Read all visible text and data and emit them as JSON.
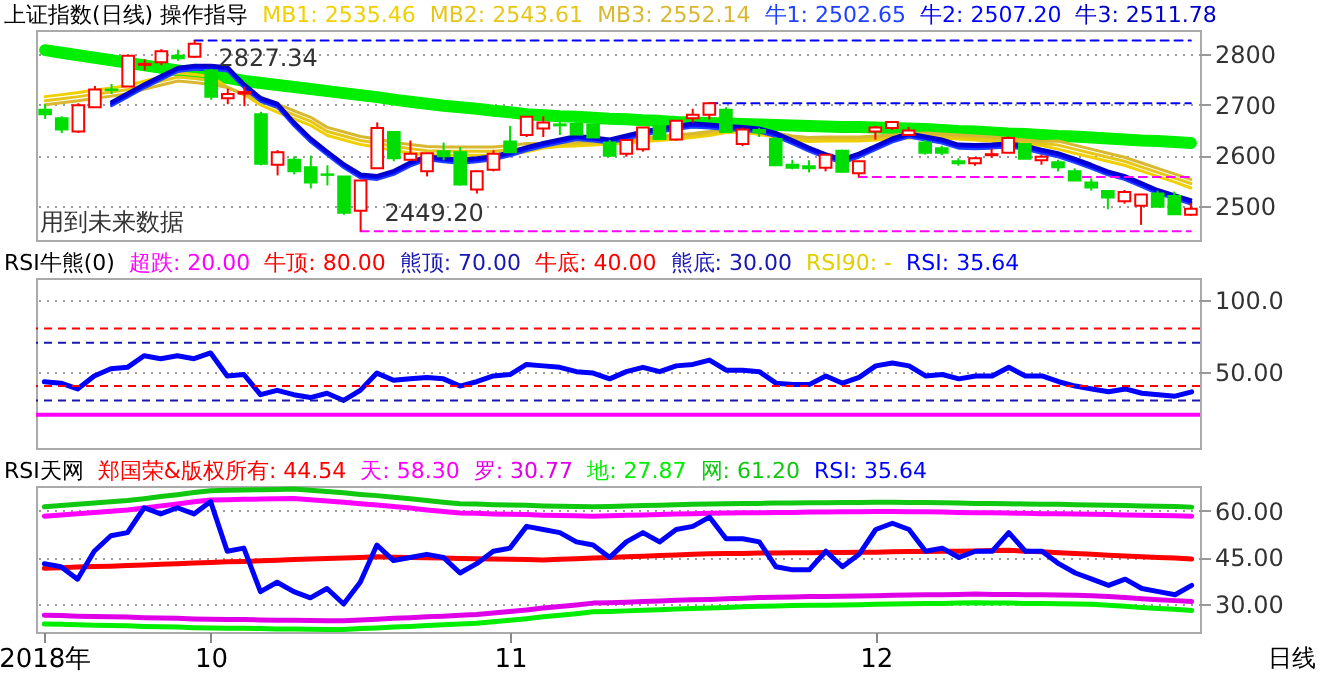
{
  "chart_data": [
    {
      "type": "candlestick",
      "title": "上证指数(日线) 操作指导",
      "categories": [
        null,
        null,
        null,
        null,
        null,
        null,
        null,
        null,
        null,
        null,
        null,
        null,
        null,
        null,
        null,
        null,
        null,
        null,
        null,
        null,
        null,
        null,
        null,
        null,
        null,
        null,
        null,
        null,
        null,
        null,
        null,
        null,
        null,
        null,
        null,
        null,
        null,
        null,
        null,
        null,
        null,
        null,
        null,
        null,
        null,
        null,
        null,
        null,
        null,
        null,
        null,
        null,
        null,
        null,
        null,
        null,
        null,
        null,
        null,
        null,
        null,
        null,
        null,
        null,
        null,
        null,
        null,
        null,
        null,
        null
      ],
      "ylim": [
        2432,
        2848
      ],
      "yticks": [
        2500,
        2600,
        2700,
        2800
      ],
      "grid": "y",
      "tick_labels": "y",
      "ohlc": [
        [
          2690,
          2701,
          2672,
          2681
        ],
        [
          2673,
          2677,
          2644,
          2651
        ],
        [
          2647,
          2703,
          2644,
          2699
        ],
        [
          2695,
          2737,
          2694,
          2730
        ],
        [
          2730,
          2741,
          2721,
          2729
        ],
        [
          2736,
          2797,
          2736,
          2797
        ],
        [
          2779,
          2790,
          2768,
          2781
        ],
        [
          2784,
          2810,
          2778,
          2806
        ],
        [
          2797,
          2809,
          2787,
          2792
        ],
        [
          2795,
          2827.34,
          2793,
          2821
        ],
        [
          2768,
          2771,
          2710,
          2716
        ],
        [
          2713,
          2732,
          2701,
          2721
        ],
        [
          2722,
          2736,
          2697,
          2725
        ],
        [
          2681,
          2686,
          2580,
          2583
        ],
        [
          2581,
          2610,
          2560,
          2606
        ],
        [
          2591,
          2598,
          2562,
          2568
        ],
        [
          2576,
          2599,
          2534,
          2546
        ],
        [
          2562,
          2580,
          2540,
          2561
        ],
        [
          2558,
          2558,
          2482,
          2486
        ],
        [
          2490,
          2550,
          2449.2,
          2550
        ],
        [
          2574,
          2665,
          2574,
          2654
        ],
        [
          2646,
          2646,
          2588,
          2594
        ],
        [
          2591,
          2629,
          2589,
          2603
        ],
        [
          2568,
          2605,
          2558,
          2604
        ],
        [
          2608,
          2625,
          2590,
          2598
        ],
        [
          2606,
          2616,
          2540,
          2542
        ],
        [
          2532,
          2570,
          2524,
          2568
        ],
        [
          2571,
          2610,
          2568,
          2603
        ],
        [
          2627,
          2658,
          2606,
          2606
        ],
        [
          2640,
          2677,
          2636,
          2676
        ],
        [
          2653,
          2677,
          2636,
          2665
        ],
        [
          2661,
          2668,
          2640,
          2659
        ],
        [
          2662,
          2665,
          2640,
          2641
        ],
        [
          2661,
          2662,
          2634,
          2635
        ],
        [
          2625,
          2630,
          2596,
          2599
        ],
        [
          2603,
          2630,
          2597,
          2630
        ],
        [
          2612,
          2655,
          2607,
          2655
        ],
        [
          2658,
          2660,
          2632,
          2632
        ],
        [
          2631,
          2668,
          2629,
          2668
        ],
        [
          2673,
          2692,
          2665,
          2680
        ],
        [
          2680,
          2703,
          2671,
          2703
        ],
        [
          2690,
          2695,
          2646,
          2646
        ],
        [
          2622,
          2655,
          2618,
          2651
        ],
        [
          2650,
          2654,
          2636,
          2645
        ],
        [
          2632,
          2636,
          2579,
          2580
        ],
        [
          2581,
          2591,
          2572,
          2575
        ],
        [
          2578,
          2590,
          2566,
          2574
        ],
        [
          2575,
          2602,
          2568,
          2601
        ],
        [
          2609,
          2611,
          2566,
          2567
        ],
        [
          2564,
          2589,
          2557,
          2588
        ],
        [
          2647,
          2658,
          2631,
          2655
        ],
        [
          2654,
          2667,
          2650,
          2666
        ],
        [
          2640,
          2656,
          2638,
          2649
        ],
        [
          2625,
          2630,
          2601,
          2605
        ],
        [
          2614,
          2619,
          2600,
          2605
        ],
        [
          2588,
          2594,
          2579,
          2584
        ],
        [
          2584,
          2596,
          2579,
          2594
        ],
        [
          2600,
          2613,
          2595,
          2602
        ],
        [
          2605,
          2637,
          2605,
          2634
        ],
        [
          2622,
          2622,
          2593,
          2593
        ],
        [
          2590,
          2601,
          2581,
          2597
        ],
        [
          2586,
          2591,
          2568,
          2576
        ],
        [
          2568,
          2574,
          2549,
          2550
        ],
        [
          2546,
          2554,
          2530,
          2536
        ],
        [
          2529,
          2531,
          2493,
          2516
        ],
        [
          2509,
          2531,
          2504,
          2527
        ],
        [
          2500,
          2522,
          2462,
          2522
        ],
        [
          2524,
          2530,
          2498,
          2498
        ],
        [
          2519,
          2528,
          2482,
          2483
        ],
        [
          2482,
          2505,
          2480,
          2494
        ]
      ],
      "colors": [
        "#00dd00",
        "#00dd00",
        "#ff0000",
        "#ff0000",
        "#00dd00",
        "#ff0000",
        "#ff0000",
        "#ff0000",
        "#00dd00",
        "#ff0000",
        "#00dd00",
        "#ff0000",
        "#ff0000",
        "#00dd00",
        "#ff0000",
        "#00dd00",
        "#00dd00",
        "#00dd00",
        "#00dd00",
        "#ff0000",
        "#ff0000",
        "#00dd00",
        "#ff0000",
        "#ff0000",
        "#00dd00",
        "#00dd00",
        "#ff0000",
        "#ff0000",
        "#00dd00",
        "#ff0000",
        "#ff0000",
        "#00dd00",
        "#00dd00",
        "#00dd00",
        "#00dd00",
        "#ff0000",
        "#ff0000",
        "#00dd00",
        "#ff0000",
        "#ff0000",
        "#ff0000",
        "#00dd00",
        "#ff0000",
        "#00dd00",
        "#00dd00",
        "#00dd00",
        "#00dd00",
        "#ff0000",
        "#00dd00",
        "#ff0000",
        "#ff0000",
        "#ff0000",
        "#ff0000",
        "#00dd00",
        "#00dd00",
        "#00dd00",
        "#ff0000",
        "#ff0000",
        "#ff0000",
        "#00dd00",
        "#ff0000",
        "#00dd00",
        "#00dd00",
        "#00dd00",
        "#00dd00",
        "#ff0000",
        "#ff0000",
        "#00dd00",
        "#00dd00",
        "#ff0000"
      ],
      "series": [
        {
          "type": "line",
          "color": "#00ee00",
          "values": [
            2808,
            2803,
            2798,
            2793,
            2788,
            2783,
            2778,
            2773,
            2768,
            2763,
            2758,
            2753,
            2747,
            2743,
            2739,
            2735,
            2731,
            2727,
            2723,
            2719,
            2715,
            2710,
            2706,
            2702,
            2698,
            2695,
            2692,
            2688,
            2685,
            2681,
            2679,
            2677,
            2676,
            2674,
            2672,
            2671,
            2669,
            2668,
            2666,
            2665,
            2664,
            2663,
            2662,
            2661,
            2660,
            2659,
            2658,
            2657,
            2656,
            2656,
            2655,
            2654,
            2653,
            2652,
            2650,
            2648,
            2647,
            2645,
            2643,
            2642,
            2640,
            2638,
            2637,
            2635,
            2633,
            2631,
            2629,
            2628,
            2626,
            2624
          ]
        },
        {
          "type": "line",
          "name": "MB1: 2535.46",
          "color": "#f0d000",
          "values": [
            2716,
            2720,
            2724,
            2729,
            2733,
            2738,
            2747,
            2755,
            2763,
            2760,
            2756,
            2734,
            2720,
            2699,
            2685,
            2672,
            2659,
            2639,
            2630,
            2621,
            2616,
            2609,
            2605,
            2601,
            2600,
            2600,
            2600,
            2600,
            2603,
            2607,
            2614,
            2617,
            2618,
            2620,
            2622,
            2624,
            2627,
            2629,
            2632,
            2635,
            2639,
            2645,
            2646,
            2641,
            2636,
            2630,
            2627,
            2628,
            2628,
            2628,
            2630,
            2632,
            2634,
            2636,
            2634,
            2632,
            2630,
            2628,
            2625,
            2622,
            2619,
            2612,
            2604,
            2596,
            2588,
            2580,
            2569,
            2558,
            2547,
            2535
          ]
        },
        {
          "type": "line",
          "name": "MB2: 2543.61",
          "color": "#e6c619",
          "values": [
            2708,
            2712,
            2716,
            2721,
            2725,
            2730,
            2739,
            2747,
            2755,
            2752,
            2748,
            2734,
            2720,
            2707,
            2693,
            2680,
            2667,
            2647,
            2638,
            2629,
            2624,
            2617,
            2613,
            2609,
            2608,
            2608,
            2608,
            2608,
            2611,
            2615,
            2618,
            2621,
            2622,
            2624,
            2626,
            2628,
            2631,
            2633,
            2636,
            2639,
            2643,
            2649,
            2650,
            2645,
            2640,
            2634,
            2631,
            2632,
            2632,
            2632,
            2634,
            2636,
            2638,
            2640,
            2638,
            2636,
            2634,
            2632,
            2629,
            2626,
            2623,
            2620,
            2612,
            2604,
            2596,
            2588,
            2577,
            2566,
            2555,
            2544
          ]
        },
        {
          "type": "line",
          "name": "MB3: 2552.14",
          "color": "#d8b830",
          "values": [
            2700,
            2704,
            2708,
            2713,
            2717,
            2722,
            2731,
            2739,
            2747,
            2744,
            2740,
            2734,
            2720,
            2715,
            2701,
            2688,
            2675,
            2655,
            2646,
            2637,
            2632,
            2625,
            2621,
            2617,
            2616,
            2616,
            2616,
            2616,
            2619,
            2623,
            2622,
            2625,
            2626,
            2628,
            2630,
            2632,
            2635,
            2637,
            2640,
            2643,
            2647,
            2653,
            2654,
            2649,
            2644,
            2638,
            2635,
            2636,
            2636,
            2636,
            2638,
            2640,
            2642,
            2644,
            2642,
            2640,
            2638,
            2636,
            2633,
            2630,
            2627,
            2628,
            2620,
            2612,
            2604,
            2596,
            2585,
            2574,
            2563,
            2552
          ]
        },
        {
          "type": "line",
          "name": "牛1: 2502.65",
          "color": "#2040ff",
          "values": [
            null,
            null,
            null,
            null,
            2698,
            2716,
            2734,
            2750,
            2766,
            2770,
            2770,
            2767,
            2733,
            2706,
            2695,
            2658,
            2626,
            2600,
            2575,
            2555,
            2552,
            2562,
            2579,
            2591,
            2587,
            2584,
            2587,
            2591,
            2599,
            2609,
            2617,
            2624,
            2631,
            2628,
            2624,
            2632,
            2640,
            2646,
            2651,
            2656,
            2654,
            2651,
            2649,
            2646,
            2637,
            2623,
            2608,
            2595,
            2585,
            2596,
            2611,
            2626,
            2636,
            2630,
            2624,
            2614,
            2613,
            2614,
            2616,
            2612,
            2604,
            2597,
            2586,
            2574,
            2561,
            2552,
            2538,
            2524,
            2514,
            2503
          ]
        },
        {
          "type": "line",
          "name": "牛2: 2507.20",
          "color": "#0000ff",
          "values": [
            null,
            null,
            null,
            null,
            2702,
            2720,
            2738,
            2754,
            2770,
            2774,
            2774,
            2771,
            2737,
            2710,
            2699,
            2662,
            2630,
            2604,
            2579,
            2559,
            2556,
            2566,
            2583,
            2595,
            2591,
            2588,
            2591,
            2595,
            2603,
            2613,
            2621,
            2628,
            2635,
            2632,
            2628,
            2636,
            2644,
            2650,
            2655,
            2660,
            2658,
            2655,
            2653,
            2650,
            2641,
            2627,
            2612,
            2599,
            2589,
            2600,
            2615,
            2630,
            2640,
            2634,
            2628,
            2618,
            2617,
            2618,
            2620,
            2616,
            2608,
            2601,
            2590,
            2578,
            2565,
            2556,
            2542,
            2528,
            2518,
            2507
          ]
        },
        {
          "type": "line",
          "name": "牛3: 2511.78",
          "color": "#0000c8",
          "values": [
            null,
            null,
            null,
            null,
            2706,
            2724,
            2742,
            2758,
            2774,
            2778,
            2778,
            2775,
            2741,
            2714,
            2703,
            2666,
            2634,
            2608,
            2583,
            2563,
            2560,
            2570,
            2587,
            2599,
            2595,
            2592,
            2595,
            2599,
            2607,
            2617,
            2625,
            2632,
            2639,
            2636,
            2632,
            2640,
            2648,
            2654,
            2659,
            2664,
            2662,
            2659,
            2657,
            2654,
            2645,
            2631,
            2616,
            2603,
            2593,
            2604,
            2619,
            2634,
            2644,
            2638,
            2632,
            2622,
            2621,
            2622,
            2624,
            2620,
            2612,
            2605,
            2594,
            2582,
            2569,
            2560,
            2546,
            2532,
            2522,
            2512
          ]
        },
        {
          "type": "line",
          "color": "#0000ff",
          "line_style": "dashed",
          "values": [
            null,
            null,
            null,
            null,
            null,
            null,
            null,
            null,
            null,
            2827.34,
            2827.34,
            2827.34,
            2827.34,
            2827.34,
            2827.34,
            2827.34,
            2827.34,
            2827.34,
            2827.34,
            2827.34,
            2827.34,
            2827.34,
            2827.34,
            2827.34,
            2827.34,
            2827.34,
            2827.34,
            2827.34,
            2827.34,
            2827.34,
            2827.34,
            2827.34,
            2827.34,
            2827.34,
            2827.34,
            2827.34,
            2827.34,
            2827.34,
            2827.34,
            2827.34,
            2827.34,
            2827.34,
            2827.34,
            2827.34,
            2827.34,
            2827.34,
            2827.34,
            2827.34,
            2827.34,
            2827.34,
            2827.34,
            2827.34,
            2827.34,
            2827.34,
            2827.34,
            2827.34,
            2827.34,
            2827.34,
            2827.34,
            2827.34,
            2827.34,
            2827.34,
            2827.34,
            2827.34,
            2827.34,
            2827.34,
            2827.34,
            2827.34,
            2827.34,
            2827.34
          ]
        },
        {
          "type": "line",
          "color": "#ff00ff",
          "line_style": "dashed",
          "values": [
            null,
            null,
            null,
            null,
            null,
            null,
            null,
            null,
            null,
            null,
            null,
            null,
            null,
            null,
            null,
            null,
            null,
            null,
            null,
            2449.2,
            2449.2,
            2449.2,
            2449.2,
            2449.2,
            2449.2,
            2449.2,
            2449.2,
            2449.2,
            2449.2,
            2449.2,
            2449.2,
            2449.2,
            2449.2,
            2449.2,
            2449.2,
            2449.2,
            2449.2,
            2449.2,
            2449.2,
            2449.2,
            2449.2,
            2449.2,
            2449.2,
            2449.2,
            2449.2,
            2449.2,
            2449.2,
            2449.2,
            2449.2,
            2449.2,
            2449.2,
            2449.2,
            2449.2,
            2449.2,
            2449.2,
            2449.2,
            2449.2,
            2449.2,
            2449.2,
            2449.2,
            2449.2,
            2449.2,
            2449.2,
            2449.2,
            2449.2,
            2449.2,
            2449.2,
            2449.2,
            2449.2,
            2449.2
          ]
        },
        {
          "type": "line",
          "color": "#0000ff",
          "line_style": "dashed",
          "values": [
            null,
            null,
            null,
            null,
            null,
            null,
            null,
            null,
            null,
            null,
            null,
            null,
            null,
            null,
            null,
            null,
            null,
            null,
            null,
            null,
            null,
            null,
            null,
            null,
            null,
            null,
            null,
            null,
            null,
            null,
            null,
            null,
            null,
            null,
            null,
            null,
            null,
            null,
            null,
            null,
            2703,
            2703,
            2703,
            2703,
            2703,
            2703,
            2703,
            2703,
            2703,
            2703,
            2703,
            2703,
            2703,
            2703,
            2703,
            2703,
            2703,
            2703,
            2703,
            2703,
            2703,
            2703,
            2703,
            2703,
            2703,
            2703,
            2703,
            2703,
            2703,
            2703
          ]
        },
        {
          "type": "line",
          "color": "#ff00ff",
          "line_style": "dashed",
          "values": [
            null,
            null,
            null,
            null,
            null,
            null,
            null,
            null,
            null,
            null,
            null,
            null,
            null,
            null,
            null,
            null,
            null,
            null,
            null,
            null,
            null,
            null,
            null,
            null,
            null,
            null,
            null,
            null,
            null,
            null,
            null,
            null,
            null,
            null,
            null,
            null,
            null,
            null,
            null,
            null,
            null,
            null,
            null,
            null,
            null,
            null,
            null,
            null,
            null,
            2557,
            2557,
            2557,
            2557,
            2557,
            2557,
            2557,
            2557,
            2557,
            2557,
            2557,
            2557,
            2557,
            2557,
            2557,
            2557,
            2557,
            2557,
            2557,
            2557,
            2557
          ]
        }
      ],
      "annotations": [
        {
          "text": "2827.34",
          "y": 2827.34
        },
        {
          "text": "2449.20",
          "y": 2449.2
        },
        "用到未来数据"
      ]
    },
    {
      "type": "line",
      "title": "RSI牛熊(0)",
      "categories": [
        null,
        null,
        null,
        null,
        null,
        null,
        null,
        null,
        null,
        null,
        null,
        null,
        null,
        null,
        null,
        null,
        null,
        null,
        null,
        null,
        null,
        null,
        null,
        null,
        null,
        null,
        null,
        null,
        null,
        null,
        null,
        null,
        null,
        null,
        null,
        null,
        null,
        null,
        null,
        null,
        null,
        null,
        null,
        null,
        null,
        null,
        null,
        null,
        null,
        null,
        null,
        null,
        null,
        null,
        null,
        null,
        null,
        null,
        null,
        null,
        null,
        null,
        null,
        null,
        null,
        null,
        null,
        null,
        null,
        null
      ],
      "ylim": [
        -3,
        115
      ],
      "yticks": [
        {
          "value": 100,
          "label": "100.0"
        },
        {
          "value": 50,
          "label": "50.00"
        }
      ],
      "grid": "y",
      "tick_labels": "y",
      "ref_lines": [
        {
          "axis": "y",
          "value": 20,
          "label": "超跌: 20.00",
          "color": "#ff00ff",
          "line_style": "solid"
        },
        {
          "axis": "y",
          "value": 80,
          "label": "牛顶: 80.00",
          "color": "#ff0000",
          "line_style": "dashed"
        },
        {
          "axis": "y",
          "value": 70,
          "label": "熊顶: 70.00",
          "color": "#1818b0",
          "line_style": "dashed"
        },
        {
          "axis": "y",
          "value": 40,
          "label": "牛底: 40.00",
          "color": "#ff0000",
          "line_style": "dashed"
        },
        {
          "axis": "y",
          "value": 30,
          "label": "熊底: 30.00",
          "color": "#1818b0",
          "line_style": "dashed"
        }
      ],
      "annotations": [
        "RSI90: -"
      ],
      "series": [
        {
          "type": "line",
          "name": "RSI: 35.64",
          "color": "#0000ff",
          "values": [
            43,
            42,
            38,
            47,
            52,
            53,
            61,
            59,
            61,
            59,
            63,
            47,
            48,
            34,
            37,
            34,
            32,
            35,
            30,
            37,
            49,
            44,
            45,
            46,
            45,
            40,
            43,
            47,
            48,
            55,
            54,
            53,
            50,
            49,
            45,
            50,
            53,
            50,
            54,
            55,
            58,
            51,
            51,
            50,
            42,
            41,
            41,
            47,
            42,
            46,
            54,
            56,
            54,
            47,
            48,
            45,
            47,
            47,
            53,
            47,
            47,
            43,
            40,
            38,
            36,
            38,
            35,
            34,
            33,
            36
          ]
        }
      ]
    },
    {
      "type": "line",
      "title": "RSI天网",
      "categories": [
        "2018年",
        null,
        null,
        null,
        null,
        null,
        null,
        null,
        null,
        null,
        "10",
        null,
        null,
        null,
        null,
        null,
        null,
        null,
        null,
        null,
        null,
        null,
        null,
        null,
        null,
        null,
        null,
        null,
        "11",
        null,
        null,
        null,
        null,
        null,
        null,
        null,
        null,
        null,
        null,
        null,
        null,
        null,
        null,
        null,
        null,
        null,
        null,
        null,
        null,
        null,
        "12",
        null,
        null,
        null,
        null,
        null,
        null,
        null,
        null,
        null,
        null,
        null,
        null,
        null,
        null,
        null,
        null,
        null,
        null,
        null
      ],
      "ylim": [
        21,
        68
      ],
      "yticks": [
        {
          "value": 60,
          "label": "60.00"
        },
        {
          "value": 45,
          "label": "45.00"
        },
        {
          "value": 30,
          "label": "30.00"
        }
      ],
      "grid": "y",
      "annotations": [
        "日线"
      ],
      "series": [
        {
          "type": "line",
          "name": "郑国荣&版权所有: 44.54",
          "color": "#ff0000",
          "values": [
            41.5,
            41.7,
            41.9,
            42.1,
            42.2,
            42.4,
            42.6,
            42.8,
            43.0,
            43.2,
            43.4,
            43.6,
            43.7,
            43.9,
            44.1,
            44.3,
            44.5,
            44.7,
            44.8,
            45.0,
            45.2,
            45.1,
            45.0,
            44.9,
            44.8,
            44.7,
            44.6,
            44.5,
            44.4,
            44.3,
            44.2,
            44.4,
            44.6,
            44.8,
            45.0,
            45.2,
            45.4,
            45.6,
            45.8,
            46.0,
            46.2,
            46.3,
            46.3,
            46.4,
            46.4,
            46.5,
            46.5,
            46.6,
            46.6,
            46.7,
            46.7,
            46.8,
            46.9,
            46.9,
            47.0,
            47.0,
            47.1,
            47.2,
            47.3,
            47.0,
            46.8,
            46.5,
            46.3,
            46.0,
            45.7,
            45.5,
            45.2,
            45.0,
            44.8,
            44.5
          ]
        },
        {
          "type": "line",
          "name": "天: 58.30",
          "color": "#ff00ff",
          "values": [
            58.3,
            58.7,
            59.1,
            59.5,
            59.9,
            60.3,
            60.9,
            61.6,
            62.2,
            62.9,
            63.5,
            63.6,
            63.7,
            63.8,
            63.9,
            64.0,
            63.6,
            63.2,
            62.8,
            62.3,
            61.9,
            61.4,
            60.9,
            60.3,
            59.8,
            59.3,
            59.2,
            59.0,
            58.9,
            58.8,
            58.6,
            58.5,
            58.4,
            58.3,
            58.4,
            58.6,
            58.7,
            58.8,
            59.0,
            59.1,
            59.2,
            59.3,
            59.4,
            59.4,
            59.5,
            59.5,
            59.6,
            59.6,
            59.7,
            59.7,
            59.8,
            59.8,
            59.7,
            59.7,
            59.6,
            59.5,
            59.4,
            59.4,
            59.3,
            59.2,
            59.1,
            59.1,
            59.0,
            58.9,
            58.8,
            58.7,
            58.6,
            58.5,
            58.4,
            58.3
          ]
        },
        {
          "type": "line",
          "name": "罗: 30.77",
          "color": "#e000e8",
          "values": [
            26.4,
            26.3,
            26.1,
            26.0,
            25.9,
            25.8,
            25.6,
            25.5,
            25.4,
            25.2,
            25.1,
            25.0,
            25.0,
            24.9,
            24.8,
            24.8,
            24.7,
            24.6,
            24.6,
            24.9,
            25.1,
            25.4,
            25.6,
            25.9,
            26.1,
            26.4,
            26.6,
            27.1,
            27.6,
            28.1,
            28.7,
            29.2,
            29.7,
            30.3,
            30.4,
            30.6,
            30.8,
            31.0,
            31.2,
            31.4,
            31.5,
            31.7,
            31.9,
            32.1,
            32.2,
            32.3,
            32.4,
            32.4,
            32.5,
            32.6,
            32.7,
            32.8,
            32.9,
            33.0,
            33.0,
            33.1,
            33.2,
            33.1,
            33.1,
            33.0,
            33.0,
            32.9,
            32.8,
            32.7,
            32.4,
            32.1,
            31.7,
            31.4,
            31.1,
            30.8
          ]
        },
        {
          "type": "line",
          "name": "地: 27.87",
          "color": "#00ee00",
          "values": [
            23.6,
            23.5,
            23.3,
            23.2,
            23.1,
            23.0,
            22.8,
            22.7,
            22.6,
            22.4,
            22.3,
            22.2,
            22.2,
            22.1,
            22.0,
            22.0,
            21.9,
            21.8,
            21.8,
            22.1,
            22.3,
            22.6,
            22.8,
            23.1,
            23.3,
            23.6,
            23.8,
            24.3,
            24.8,
            25.3,
            25.9,
            26.4,
            26.9,
            27.5,
            27.6,
            27.8,
            28.0,
            28.2,
            28.4,
            28.6,
            28.7,
            28.9,
            29.1,
            29.3,
            29.4,
            29.5,
            29.6,
            29.6,
            29.7,
            29.8,
            29.9,
            30.0,
            30.1,
            30.2,
            30.2,
            30.3,
            30.4,
            30.3,
            30.3,
            30.2,
            30.2,
            30.1,
            30.0,
            29.9,
            29.6,
            29.3,
            28.9,
            28.6,
            28.3,
            27.9
          ]
        },
        {
          "type": "line",
          "name": "网: 61.20",
          "color": "#10c810",
          "values": [
            61.3,
            61.7,
            62.1,
            62.5,
            62.9,
            63.3,
            63.9,
            64.6,
            65.2,
            65.9,
            66.5,
            66.6,
            66.7,
            66.8,
            66.9,
            67.0,
            66.6,
            66.2,
            65.8,
            65.3,
            64.9,
            64.4,
            63.9,
            63.3,
            62.8,
            62.3,
            62.2,
            62.0,
            61.9,
            61.8,
            61.6,
            61.5,
            61.4,
            61.3,
            61.4,
            61.6,
            61.7,
            61.8,
            62.0,
            62.1,
            62.2,
            62.3,
            62.4,
            62.4,
            62.5,
            62.5,
            62.6,
            62.6,
            62.7,
            62.7,
            62.8,
            62.8,
            62.7,
            62.7,
            62.6,
            62.5,
            62.4,
            62.4,
            62.3,
            62.2,
            62.1,
            62.1,
            62.0,
            61.9,
            61.8,
            61.7,
            61.6,
            61.5,
            61.4,
            61.2
          ]
        },
        {
          "type": "line",
          "name": "RSI: 35.64",
          "color": "#0000ff",
          "values": [
            43,
            42,
            38,
            47,
            52,
            53,
            61,
            59,
            61,
            59,
            63,
            47,
            48,
            34,
            37,
            34,
            32,
            35,
            30,
            37,
            49,
            44,
            45,
            46,
            45,
            40,
            43,
            47,
            48,
            55,
            54,
            53,
            50,
            49,
            45,
            50,
            53,
            50,
            54,
            55,
            58,
            51,
            51,
            50,
            42,
            41,
            41,
            47,
            42,
            46,
            54,
            56,
            54,
            47,
            48,
            45,
            47,
            47,
            53,
            47,
            47,
            43,
            40,
            38,
            36,
            38,
            35,
            34,
            33,
            36
          ]
        }
      ]
    }
  ]
}
